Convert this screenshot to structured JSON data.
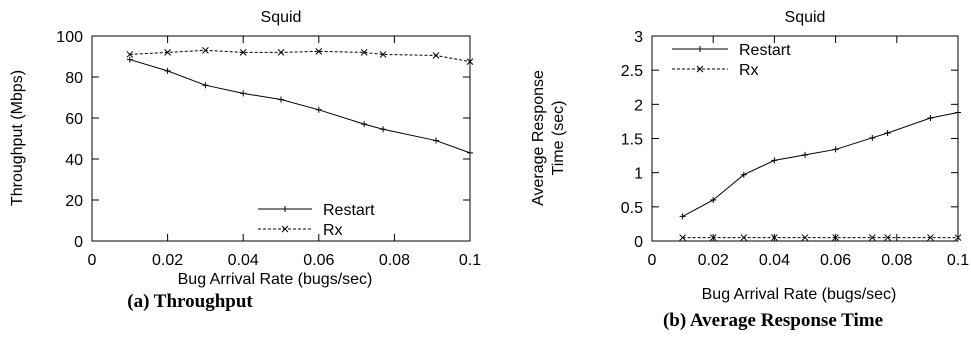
{
  "chart_data": [
    {
      "type": "line",
      "title": "Squid",
      "caption": "(a) Throughput",
      "xlabel": "Bug Arrival Rate (bugs/sec)",
      "ylabel": "Throughput (Mbps)",
      "xlim": [
        0,
        0.1
      ],
      "ylim": [
        0,
        100
      ],
      "xticks": [
        "0",
        "0.02",
        "0.04",
        "0.06",
        "0.08",
        "0.1"
      ],
      "yticks": [
        "0",
        "20",
        "40",
        "60",
        "80",
        "100"
      ],
      "legend_position": "bottom-right",
      "grid": false,
      "series": [
        {
          "name": "Restart",
          "x": [
            0.01,
            0.02,
            0.03,
            0.04,
            0.05,
            0.06,
            0.072,
            0.077,
            0.091,
            0.1
          ],
          "values": [
            88.5,
            83,
            76,
            72,
            69,
            64,
            57,
            54.5,
            49,
            43
          ]
        },
        {
          "name": "Rx",
          "x": [
            0.01,
            0.02,
            0.03,
            0.04,
            0.05,
            0.06,
            0.072,
            0.077,
            0.091,
            0.1
          ],
          "values": [
            91,
            92,
            93,
            92,
            92,
            92.5,
            92,
            91,
            90.5,
            87.5
          ]
        }
      ]
    },
    {
      "type": "line",
      "title": "Squid",
      "caption": "(b) Average Response Time",
      "xlabel": "Bug Arrival Rate (bugs/sec)",
      "ylabel": "Average Response Time (sec)",
      "xlim": [
        0,
        0.1
      ],
      "ylim": [
        0,
        3
      ],
      "xticks": [
        "0",
        "0.02",
        "0.04",
        "0.06",
        "0.08",
        "0.1"
      ],
      "yticks": [
        "0",
        "0.5",
        "1",
        "1.5",
        "2",
        "2.5",
        "3"
      ],
      "legend_position": "top-left",
      "grid": false,
      "series": [
        {
          "name": "Restart",
          "x": [
            0.01,
            0.02,
            0.03,
            0.04,
            0.05,
            0.06,
            0.072,
            0.077,
            0.091,
            0.1
          ],
          "values": [
            0.36,
            0.6,
            0.97,
            1.18,
            1.26,
            1.34,
            1.51,
            1.58,
            1.8,
            1.88
          ]
        },
        {
          "name": "Rx",
          "x": [
            0.01,
            0.02,
            0.03,
            0.04,
            0.05,
            0.06,
            0.072,
            0.077,
            0.091,
            0.1
          ],
          "values": [
            0.05,
            0.05,
            0.05,
            0.05,
            0.05,
            0.05,
            0.05,
            0.05,
            0.05,
            0.05
          ]
        }
      ]
    }
  ]
}
